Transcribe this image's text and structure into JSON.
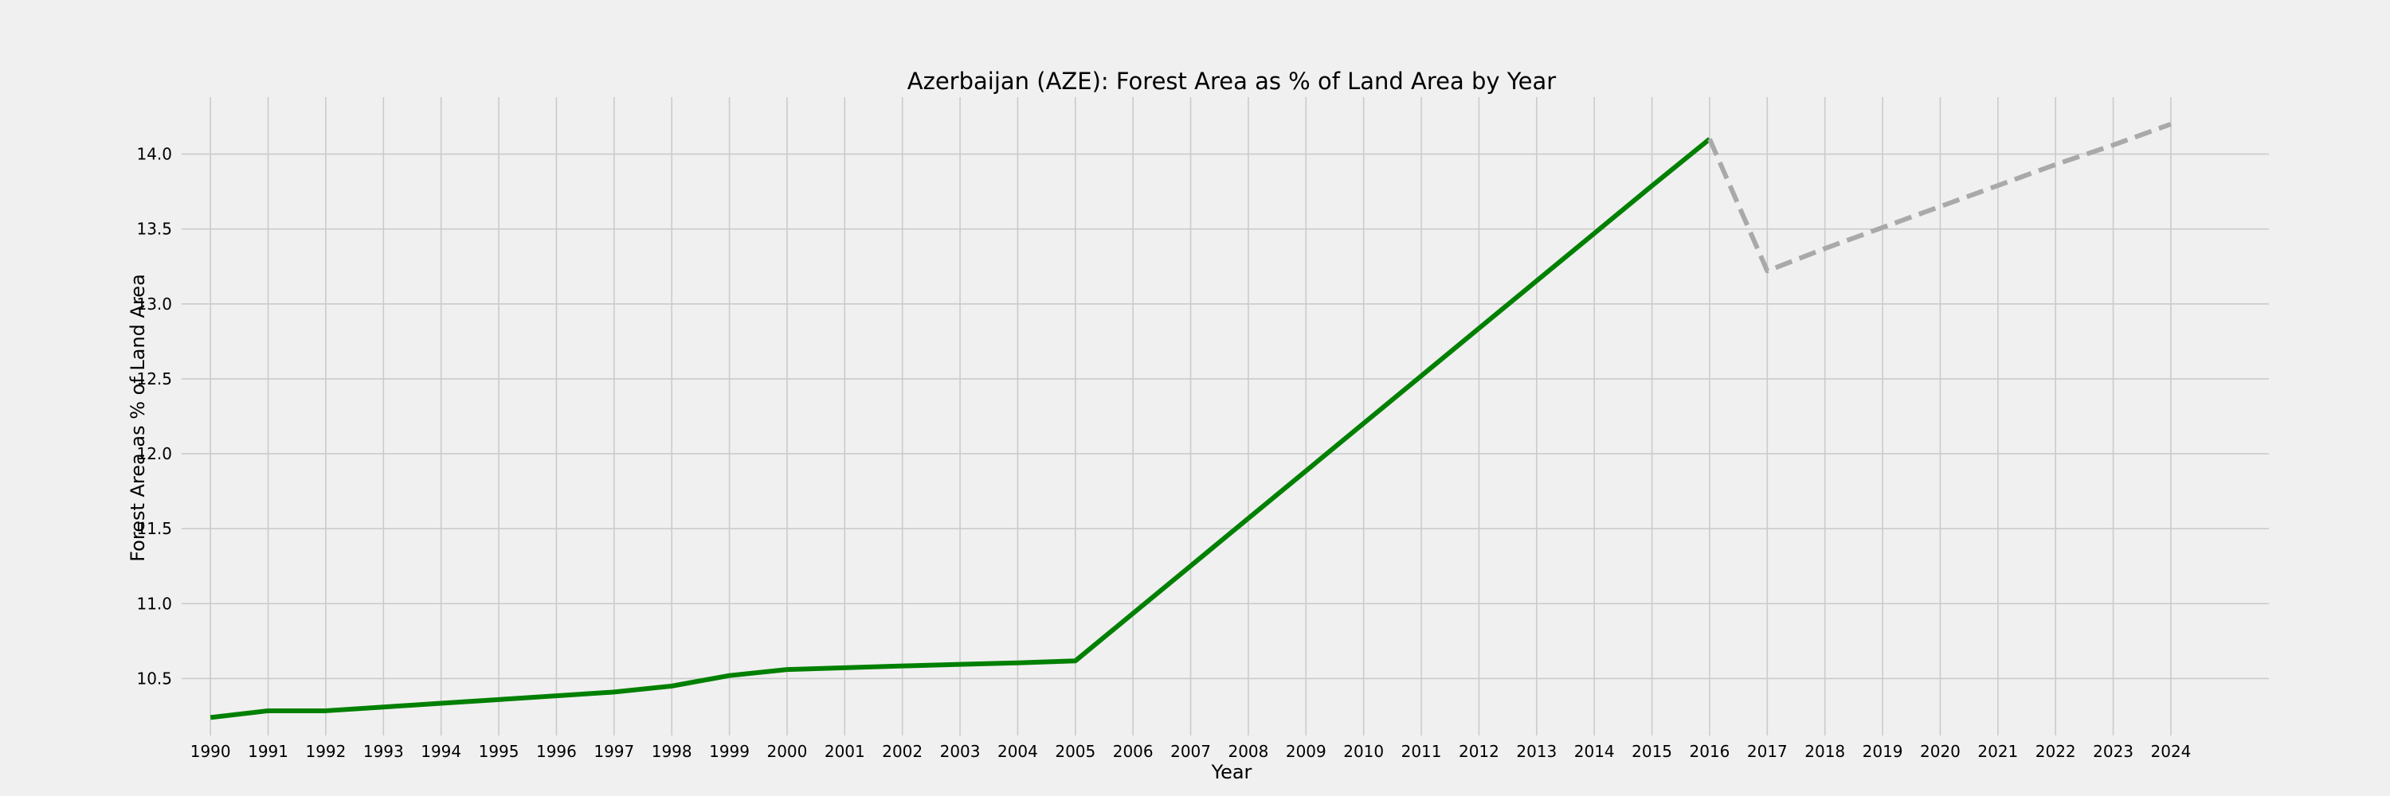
{
  "chart_data": {
    "type": "line",
    "title": "Azerbaijan (AZE): Forest Area as % of Land Area by Year",
    "xlabel": "Year",
    "ylabel": "Forest Area as % of Land Area",
    "x_ticks": [
      "1990",
      "1991",
      "1992",
      "1993",
      "1994",
      "1995",
      "1996",
      "1997",
      "1998",
      "1999",
      "2000",
      "2001",
      "2002",
      "2003",
      "2004",
      "2005",
      "2006",
      "2007",
      "2008",
      "2009",
      "2010",
      "2011",
      "2012",
      "2013",
      "2014",
      "2015",
      "2016",
      "2017",
      "2018",
      "2019",
      "2020",
      "2021",
      "2022",
      "2023",
      "2024"
    ],
    "y_ticks": [
      10.5,
      11.0,
      11.5,
      12.0,
      12.5,
      13.0,
      13.5,
      14.0
    ],
    "y_tick_labels": [
      "10.5",
      "11.0",
      "11.5",
      "12.0",
      "12.5",
      "13.0",
      "13.5",
      "14.0"
    ],
    "xlim": [
      1989.5,
      2025.7
    ],
    "ylim": [
      10.12,
      14.38
    ],
    "grid": true,
    "series": [
      {
        "color": "#008000",
        "style": "solid",
        "x": [
          1990,
          1991,
          1992,
          1993,
          1994,
          1995,
          1996,
          1997,
          1998,
          1999,
          2000,
          2001,
          2002,
          2003,
          2004,
          2005,
          2006,
          2007,
          2008,
          2009,
          2010,
          2011,
          2012,
          2013,
          2014,
          2015,
          2016
        ],
        "values": [
          10.24,
          10.285,
          10.285,
          10.31,
          10.335,
          10.36,
          10.385,
          10.41,
          10.45,
          10.52,
          10.56,
          10.572,
          10.584,
          10.595,
          10.605,
          10.618,
          10.935,
          11.252,
          11.569,
          11.886,
          12.203,
          12.52,
          12.837,
          13.154,
          13.471,
          13.788,
          14.1
        ]
      },
      {
        "color": "#a9a9a9",
        "style": "dashed",
        "x": [
          2016,
          2017,
          2018,
          2019,
          2020,
          2021,
          2022,
          2023,
          2024
        ],
        "values": [
          14.1,
          13.22,
          13.37,
          13.51,
          13.65,
          13.79,
          13.93,
          14.06,
          14.2
        ]
      }
    ]
  }
}
